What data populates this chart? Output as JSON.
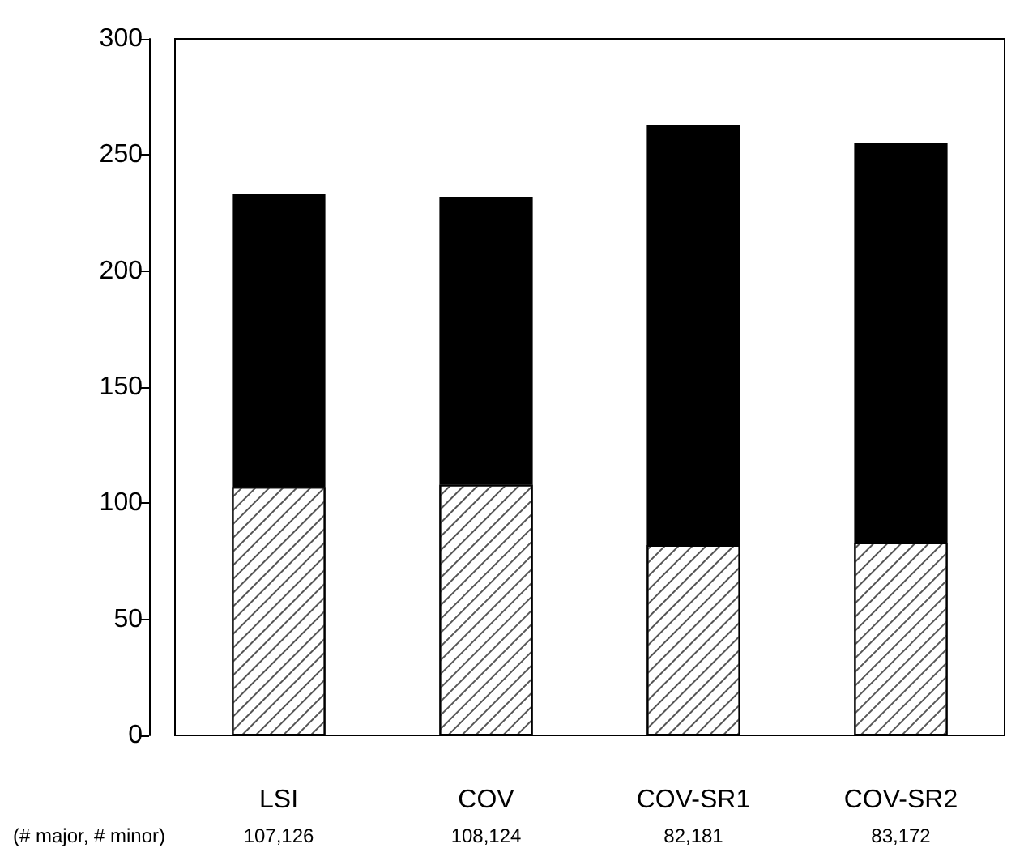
{
  "chart_data": {
    "type": "bar",
    "stacked": true,
    "categories": [
      "LSI",
      "COV",
      "COV-SR1",
      "COV-SR2"
    ],
    "series": [
      {
        "color": "#ffffff",
        "values": [
          107,
          108,
          82,
          83
        ]
      },
      {
        "color": "#000000",
        "values": [
          126,
          124,
          181,
          172
        ]
      }
    ],
    "ylim": [
      0,
      300
    ],
    "yticks": [
      0,
      50,
      100,
      150,
      200,
      250,
      300
    ],
    "grid": false,
    "annotations": [
      "(# major, # minor)",
      "107,126",
      "108,124",
      "82,181",
      "83,172"
    ]
  }
}
